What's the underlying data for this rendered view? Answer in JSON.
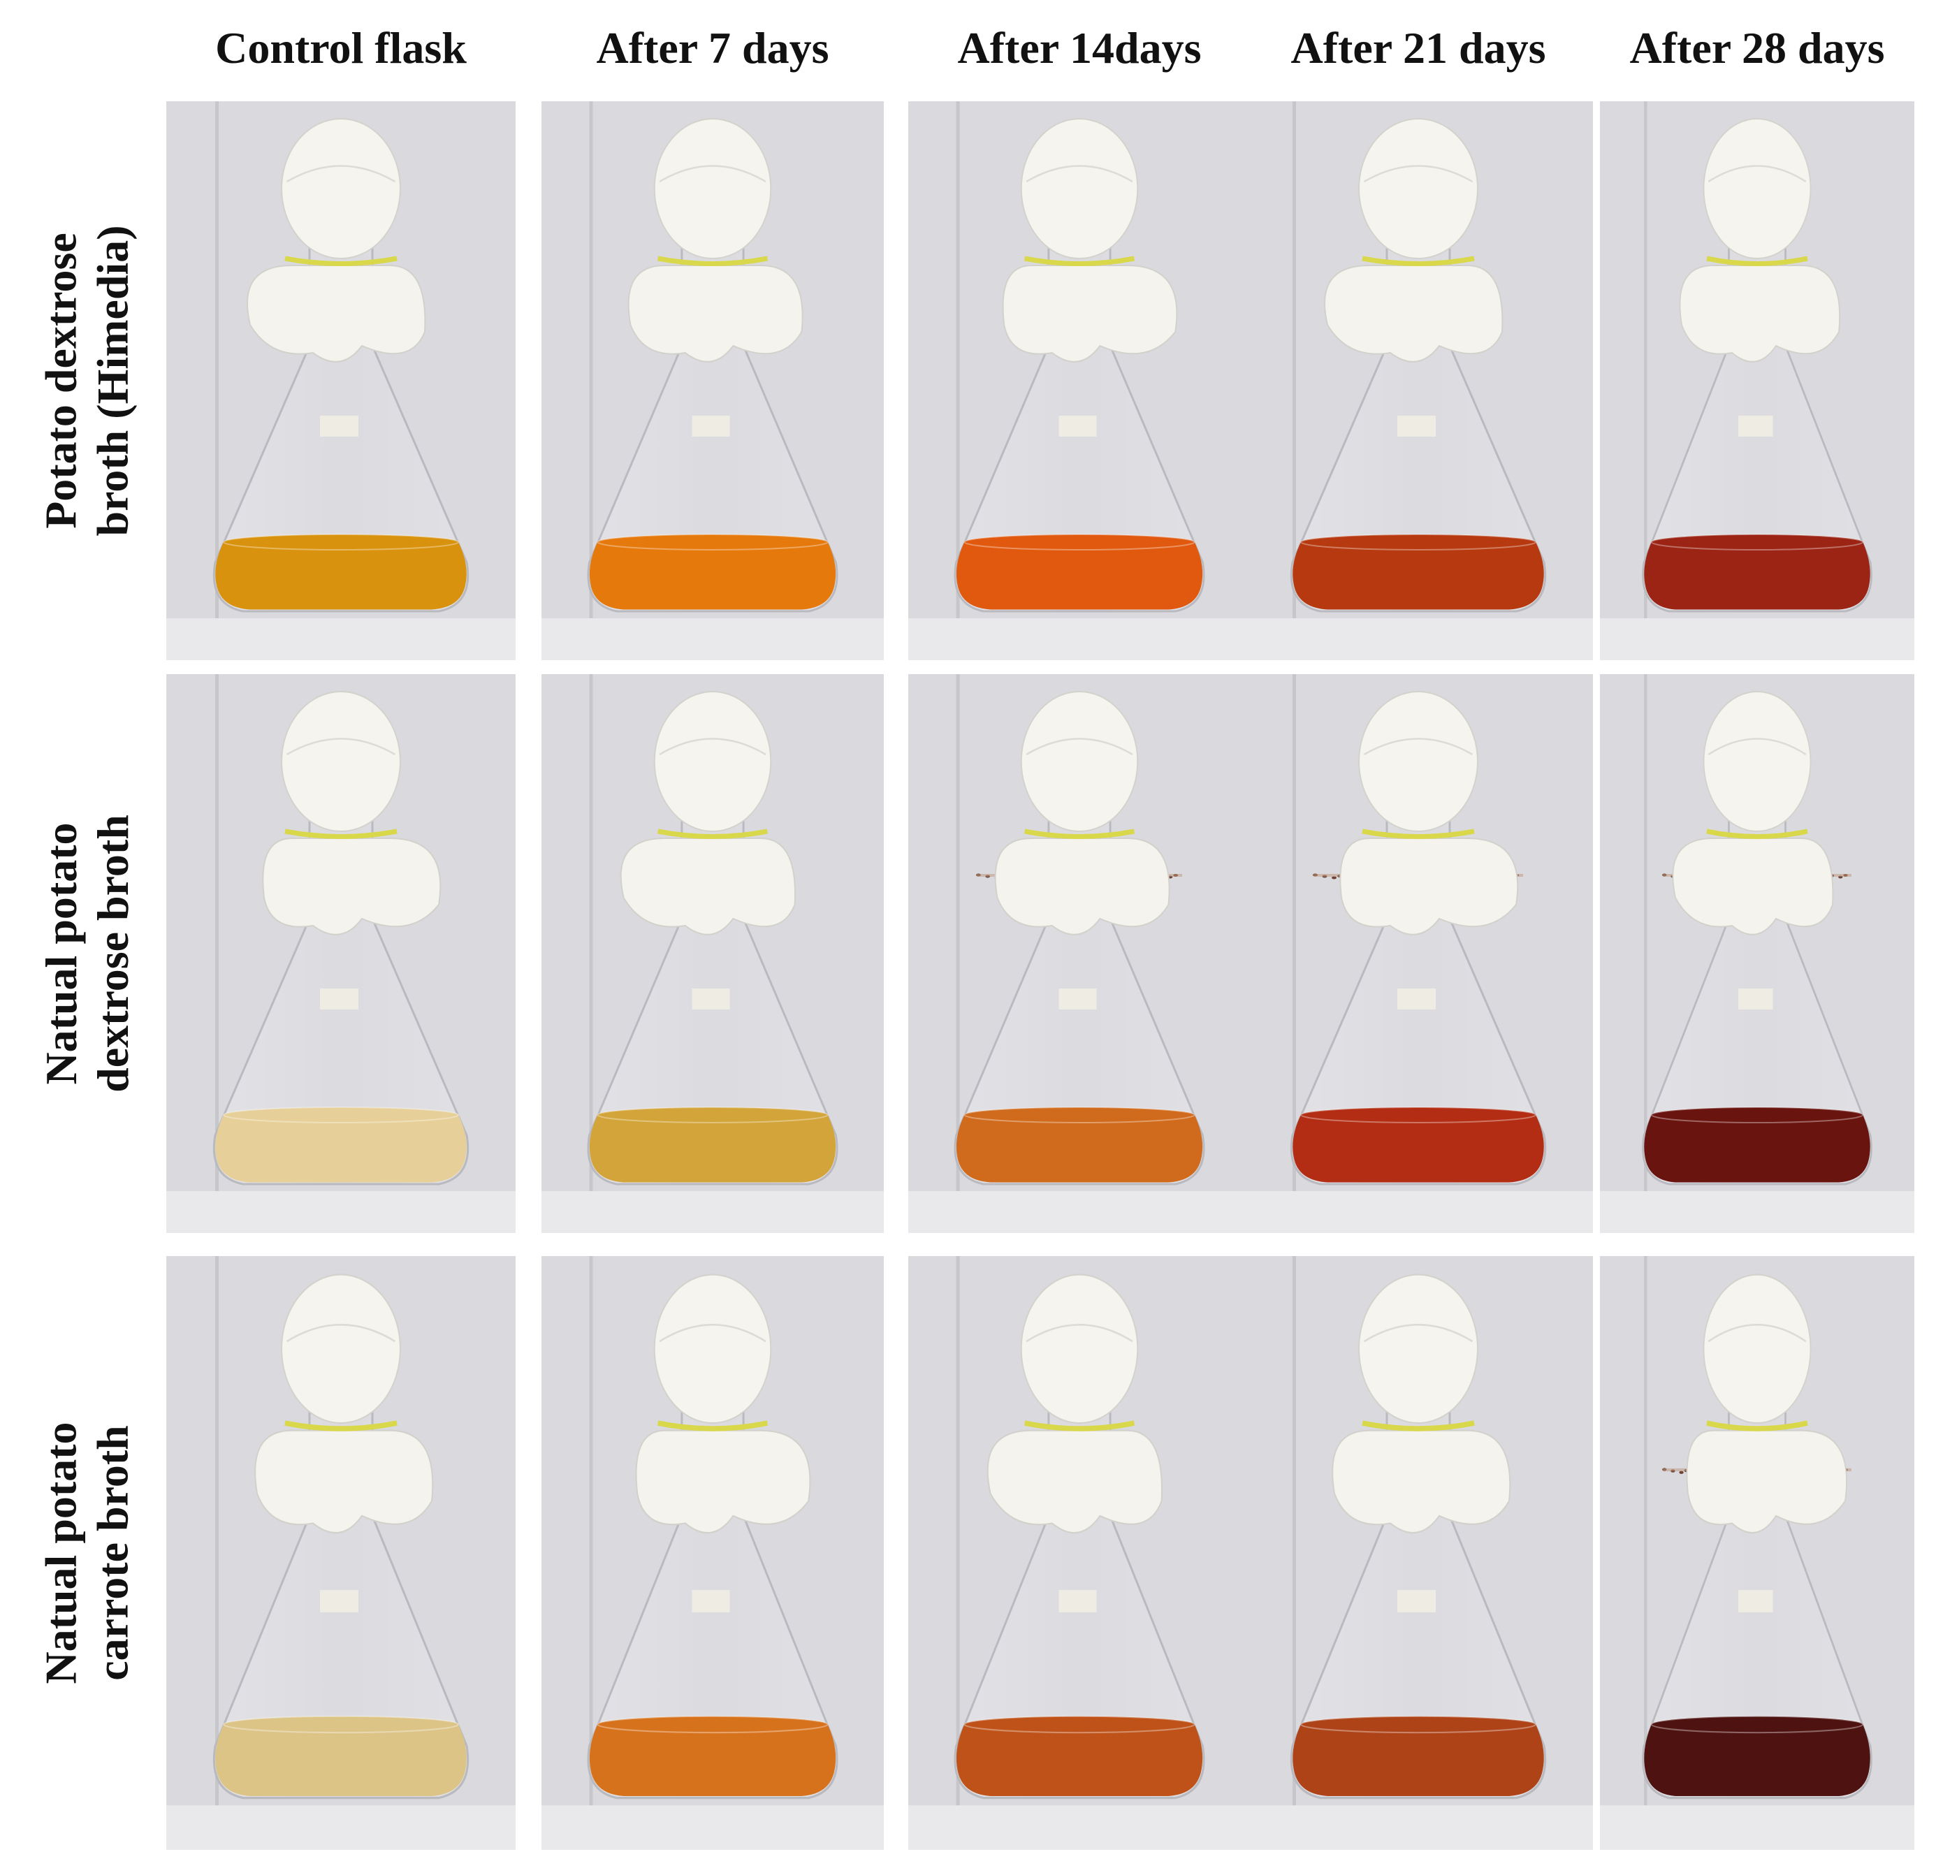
{
  "columns": [
    "Control flask",
    "After 7 days",
    "After 14days",
    "After 21 days",
    "After 28 days"
  ],
  "rows": [
    {
      "label_lines": [
        "Potato dextrose",
        "broth (Himedia)"
      ],
      "broth_colors": [
        "#d9920e",
        "#e5790c",
        "#e0590f",
        "#b7390f",
        "#9b2414"
      ],
      "debris_ring": [
        false,
        false,
        false,
        false,
        false
      ]
    },
    {
      "label_lines": [
        "Natual potato",
        "dextrose broth"
      ],
      "broth_colors": [
        "#e6cf98",
        "#d3a43a",
        "#d06a1c",
        "#b22d14",
        "#6a1410"
      ],
      "debris_ring": [
        false,
        false,
        true,
        true,
        true
      ]
    },
    {
      "label_lines": [
        "Natual potato",
        "carrote broth"
      ],
      "broth_colors": [
        "#dcc487",
        "#d7721c",
        "#be5218",
        "#ae4318",
        "#4e1210"
      ],
      "debris_ring": [
        false,
        false,
        false,
        false,
        true
      ]
    }
  ]
}
